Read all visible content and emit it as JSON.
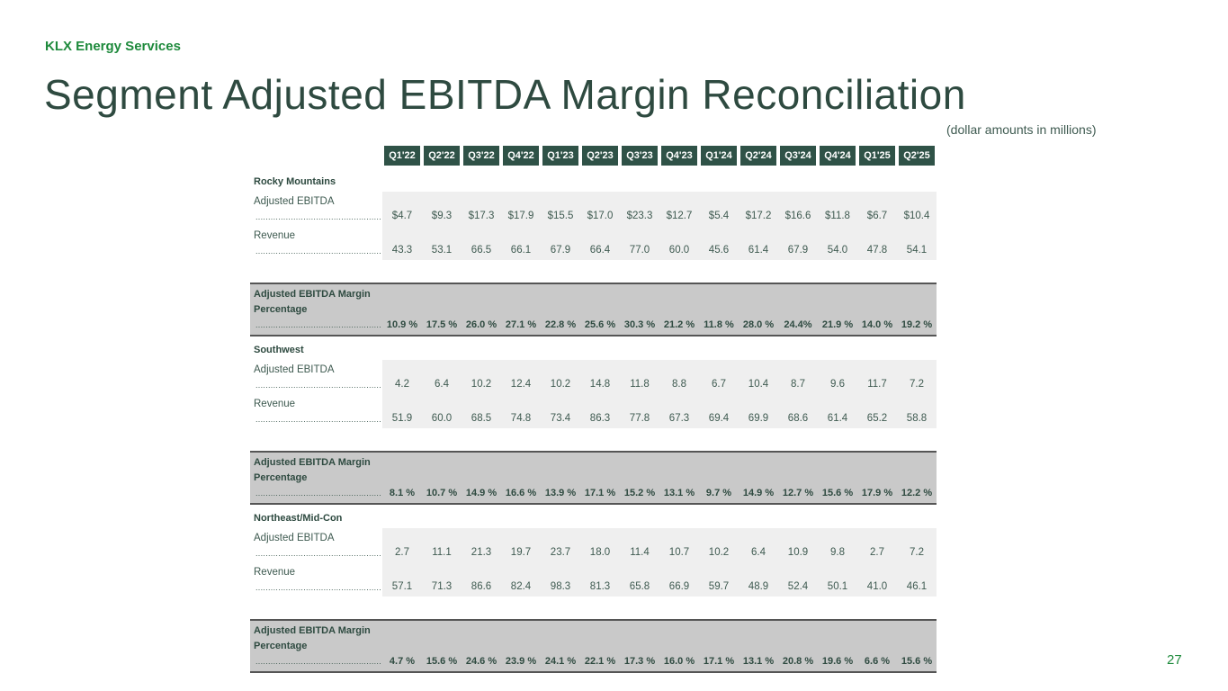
{
  "brand": "KLX Energy Services",
  "title": "Segment Adjusted EBITDA Margin Reconciliation",
  "note": "(dollar amounts in millions)",
  "page_number": "27",
  "quarters": [
    "Q1'22",
    "Q2'22",
    "Q3'22",
    "Q4'22",
    "Q1'23",
    "Q2'23",
    "Q3'23",
    "Q4'23",
    "Q1'24",
    "Q2'24",
    "Q3'24",
    "Q4'24",
    "Q1'25",
    "Q2'25"
  ],
  "dots": "........................................................",
  "labels": {
    "ebitda": "Adjusted EBITDA",
    "revenue": "Revenue",
    "margin_1": "Adjusted EBITDA Margin",
    "margin_2": "Percentage"
  },
  "segments": [
    {
      "name": "Rocky Mountains",
      "ebitda": [
        "$4.7",
        "$9.3",
        "$17.3",
        "$17.9",
        "$15.5",
        "$17.0",
        "$23.3",
        "$12.7",
        "$5.4",
        "$17.2",
        "$16.6",
        "$11.8",
        "$6.7",
        "$10.4"
      ],
      "revenue": [
        "43.3",
        "53.1",
        "66.5",
        "66.1",
        "67.9",
        "66.4",
        "77.0",
        "60.0",
        "45.6",
        "61.4",
        "67.9",
        "54.0",
        "47.8",
        "54.1"
      ],
      "margin": [
        "10.9 %",
        "17.5 %",
        "26.0 %",
        "27.1 %",
        "22.8 %",
        "25.6 %",
        "30.3 %",
        "21.2 %",
        "11.8 %",
        "28.0 %",
        "24.4%",
        "21.9 %",
        "14.0 %",
        "19.2 %"
      ]
    },
    {
      "name": "Southwest",
      "ebitda": [
        "4.2",
        "6.4",
        "10.2",
        "12.4",
        "10.2",
        "14.8",
        "11.8",
        "8.8",
        "6.7",
        "10.4",
        "8.7",
        "9.6",
        "11.7",
        "7.2"
      ],
      "revenue": [
        "51.9",
        "60.0",
        "68.5",
        "74.8",
        "73.4",
        "86.3",
        "77.8",
        "67.3",
        "69.4",
        "69.9",
        "68.6",
        "61.4",
        "65.2",
        "58.8"
      ],
      "margin": [
        "8.1 %",
        "10.7 %",
        "14.9 %",
        "16.6 %",
        "13.9 %",
        "17.1 %",
        "15.2 %",
        "13.1 %",
        "9.7 %",
        "14.9 %",
        "12.7 %",
        "15.6 %",
        "17.9 %",
        "12.2 %"
      ]
    },
    {
      "name": "Northeast/Mid-Con",
      "ebitda": [
        "2.7",
        "11.1",
        "21.3",
        "19.7",
        "23.7",
        "18.0",
        "11.4",
        "10.7",
        "10.2",
        "6.4",
        "10.9",
        "9.8",
        "2.7",
        "7.2"
      ],
      "revenue": [
        "57.1",
        "71.3",
        "86.6",
        "82.4",
        "98.3",
        "81.3",
        "65.8",
        "66.9",
        "59.7",
        "48.9",
        "52.4",
        "50.1",
        "41.0",
        "46.1"
      ],
      "margin": [
        "4.7 %",
        "15.6 %",
        "24.6 %",
        "23.9 %",
        "24.1 %",
        "22.1 %",
        "17.3 %",
        "16.0 %",
        "17.1 %",
        "13.1 %",
        "20.8 %",
        "19.6 %",
        "6.6 %",
        "15.6 %"
      ]
    }
  ]
}
